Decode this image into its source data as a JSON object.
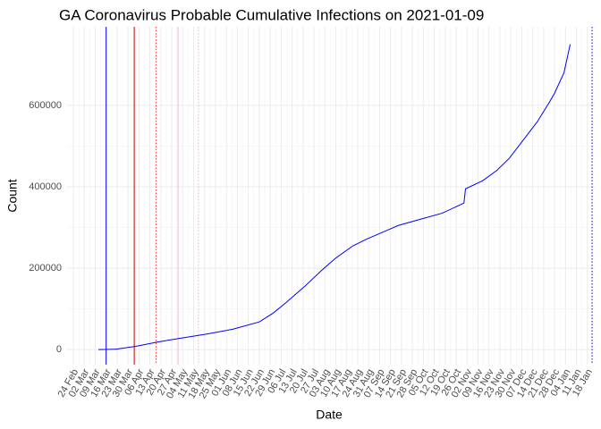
{
  "chart_data": {
    "type": "line",
    "title": "GA Coronavirus Probable Cumulative Infections on 2021-01-09",
    "xlabel": "Date",
    "ylabel": "Count",
    "x": [
      16,
      27,
      40,
      53,
      67,
      85,
      102,
      119,
      128,
      136,
      148,
      159,
      168,
      179,
      188,
      199,
      208,
      222,
      236,
      250,
      251,
      262,
      271,
      279,
      285,
      297,
      305,
      308,
      314,
      318
    ],
    "series": [
      {
        "name": "Count",
        "color": "#0000ff",
        "values": [
          0,
          1000,
          8000,
          18000,
          27000,
          38000,
          50000,
          68000,
          90000,
          115000,
          155000,
          195000,
          225000,
          255000,
          272000,
          290000,
          305000,
          320000,
          335000,
          360000,
          395000,
          415000,
          440000,
          470000,
          500000,
          560000,
          610000,
          630000,
          680000,
          750000
        ]
      }
    ],
    "vlines": [
      {
        "x": 21,
        "color": "#0000ff",
        "dash": false
      },
      {
        "x": 39,
        "color": "#cc0000",
        "dash": false
      },
      {
        "x": 53,
        "color": "#ff3333",
        "dash": true
      },
      {
        "x": 67,
        "color": "#ffb6c1",
        "dash": false
      },
      {
        "x": 80,
        "color": "#ffb6c1",
        "dash": true
      },
      {
        "x": 332,
        "color": "#0000cc",
        "dash": true
      }
    ],
    "xlim": [
      -4,
      333.7
    ],
    "xticks": [
      {
        "value": 0,
        "label": "24 Feb"
      },
      {
        "value": 7,
        "label": "02 Mar"
      },
      {
        "value": 14,
        "label": "09 Mar"
      },
      {
        "value": 21,
        "label": "16 Mar"
      },
      {
        "value": 28,
        "label": "23 Mar"
      },
      {
        "value": 35,
        "label": "30 Mar"
      },
      {
        "value": 42,
        "label": "06 Apr"
      },
      {
        "value": 49,
        "label": "13 Apr"
      },
      {
        "value": 56,
        "label": "20 Apr"
      },
      {
        "value": 63,
        "label": "27 Apr"
      },
      {
        "value": 70,
        "label": "04 May"
      },
      {
        "value": 77,
        "label": "11 May"
      },
      {
        "value": 84,
        "label": "18 May"
      },
      {
        "value": 91,
        "label": "25 May"
      },
      {
        "value": 98,
        "label": "01 Jun"
      },
      {
        "value": 105,
        "label": "08 Jun"
      },
      {
        "value": 112,
        "label": "15 Jun"
      },
      {
        "value": 119,
        "label": "22 Jun"
      },
      {
        "value": 126,
        "label": "29 Jun"
      },
      {
        "value": 133,
        "label": "06 Jul"
      },
      {
        "value": 140,
        "label": "13 Jul"
      },
      {
        "value": 147,
        "label": "20 Jul"
      },
      {
        "value": 154,
        "label": "27 Jul"
      },
      {
        "value": 161,
        "label": "03 Aug"
      },
      {
        "value": 168,
        "label": "10 Aug"
      },
      {
        "value": 175,
        "label": "17 Aug"
      },
      {
        "value": 182,
        "label": "24 Aug"
      },
      {
        "value": 189,
        "label": "31 Aug"
      },
      {
        "value": 196,
        "label": "07 Sep"
      },
      {
        "value": 203,
        "label": "14 Sep"
      },
      {
        "value": 210,
        "label": "21 Sep"
      },
      {
        "value": 217,
        "label": "28 Sep"
      },
      {
        "value": 224,
        "label": "05 Oct"
      },
      {
        "value": 231,
        "label": "12 Oct"
      },
      {
        "value": 238,
        "label": "19 Oct"
      },
      {
        "value": 245,
        "label": "26 Oct"
      },
      {
        "value": 252,
        "label": "02 Nov"
      },
      {
        "value": 259,
        "label": "09 Nov"
      },
      {
        "value": 266,
        "label": "16 Nov"
      },
      {
        "value": 273,
        "label": "23 Nov"
      },
      {
        "value": 280,
        "label": "30 Nov"
      },
      {
        "value": 287,
        "label": "07 Dec"
      },
      {
        "value": 294,
        "label": "14 Dec"
      },
      {
        "value": 301,
        "label": "21 Dec"
      },
      {
        "value": 308,
        "label": "28 Dec"
      },
      {
        "value": 315,
        "label": "04 Jan"
      },
      {
        "value": 322,
        "label": "11 Jan"
      },
      {
        "value": 329,
        "label": "18 Jan"
      }
    ],
    "ylim": [
      -37000,
      793000
    ],
    "yticks": [
      0,
      200000,
      400000,
      600000
    ],
    "grid": true
  }
}
